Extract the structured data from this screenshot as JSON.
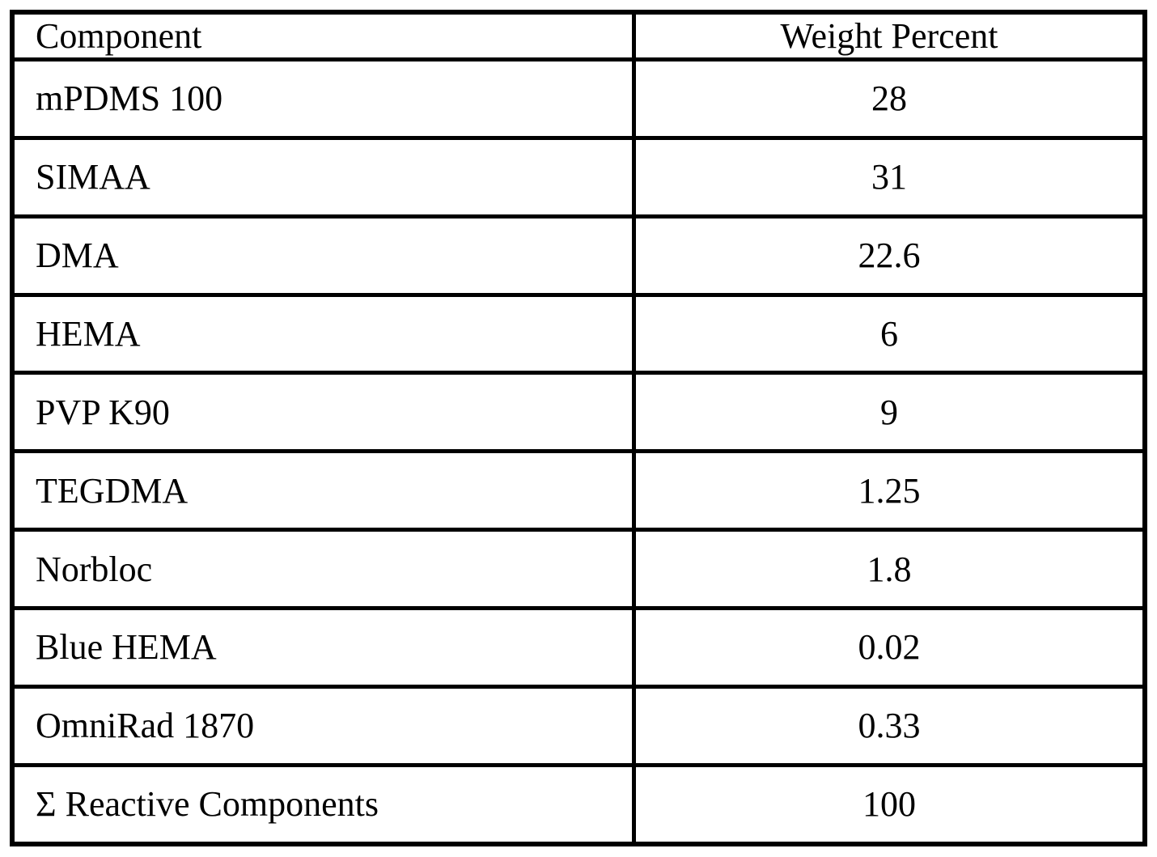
{
  "page": {
    "background_color": "#ffffff",
    "border_color": "#000000",
    "text_color": "#000000"
  },
  "table": {
    "header": {
      "component": "Component",
      "weight_percent": "Weight Percent"
    },
    "rows": [
      {
        "component": "mPDMS 100",
        "weight_percent": "28"
      },
      {
        "component": "SIMAA",
        "weight_percent": "31"
      },
      {
        "component": "DMA",
        "weight_percent": "22.6"
      },
      {
        "component": "HEMA",
        "weight_percent": "6"
      },
      {
        "component": "PVP K90",
        "weight_percent": "9"
      },
      {
        "component": "TEGDMA",
        "weight_percent": "1.25"
      },
      {
        "component": "Norbloc",
        "weight_percent": "1.8"
      },
      {
        "component": "Blue HEMA",
        "weight_percent": "0.02"
      },
      {
        "component": "OmniRad 1870",
        "weight_percent": "0.33"
      },
      {
        "component": "Σ Reactive Components",
        "weight_percent": "100"
      }
    ]
  }
}
